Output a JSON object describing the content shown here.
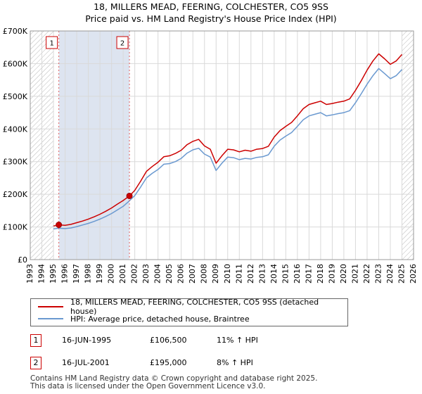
{
  "title_line1": "18, MILLERS MEAD, FEERING, COLCHESTER, CO5 9SS",
  "title_line2": "Price paid vs. HM Land Registry's House Price Index (HPI)",
  "legend": {
    "property": "18, MILLERS MEAD, FEERING, COLCHESTER, CO5 9SS (detached house)",
    "hpi": "HPI: Average price, detached house, Braintree"
  },
  "transactions": [
    {
      "id": "1",
      "date": "16-JUN-1995",
      "price": "£106,500",
      "hpi": "11% ↑ HPI"
    },
    {
      "id": "2",
      "date": "16-JUL-2001",
      "price": "£195,000",
      "hpi": "8% ↑ HPI"
    }
  ],
  "footer": {
    "line1": "Contains HM Land Registry data © Crown copyright and database right 2025.",
    "line2": "This data is licensed under the Open Government Licence v3.0."
  },
  "colors": {
    "property": "#cc0000",
    "hpi": "#6a99d0",
    "grid": "#d9d9d9",
    "shade": "#dde4f0"
  },
  "chart_data": {
    "type": "line",
    "title": "18, MILLERS MEAD, FEERING, COLCHESTER, CO5 9SS",
    "subtitle": "Price paid vs. HM Land Registry's House Price Index (HPI)",
    "xlabel": "",
    "ylabel": "",
    "xlim": [
      1993,
      2026
    ],
    "ylim": [
      0,
      700000
    ],
    "x_ticks": [
      1993,
      1994,
      1995,
      1996,
      1997,
      1998,
      1999,
      2000,
      2001,
      2002,
      2003,
      2004,
      2005,
      2006,
      2007,
      2008,
      2009,
      2010,
      2011,
      2012,
      2013,
      2014,
      2015,
      2016,
      2017,
      2018,
      2019,
      2020,
      2021,
      2022,
      2023,
      2024,
      2025,
      2026
    ],
    "y_ticks": [
      {
        "value": 0,
        "label": "£0"
      },
      {
        "value": 100000,
        "label": "£100K"
      },
      {
        "value": 200000,
        "label": "£200K"
      },
      {
        "value": 300000,
        "label": "£300K"
      },
      {
        "value": 400000,
        "label": "£400K"
      },
      {
        "value": 500000,
        "label": "£500K"
      },
      {
        "value": 600000,
        "label": "£600K"
      },
      {
        "value": 700000,
        "label": "£700K"
      }
    ],
    "hatched_ranges": [
      [
        1993,
        1995.0
      ],
      [
        2025.0,
        2026
      ]
    ],
    "shaded_range": [
      1995.46,
      2001.54
    ],
    "sale_points": [
      {
        "label": "1",
        "x": 1995.46,
        "y": 106500
      },
      {
        "label": "2",
        "x": 2001.54,
        "y": 195000
      }
    ],
    "series": [
      {
        "name": "18, MILLERS MEAD, FEERING, COLCHESTER, CO5 9SS (detached house)",
        "color": "#cc0000",
        "x": [
          1995.0,
          1995.46,
          1996.0,
          1996.5,
          1997.0,
          1997.5,
          1998.0,
          1998.5,
          1999.0,
          1999.5,
          2000.0,
          2000.5,
          2001.0,
          2001.54,
          2002.0,
          2002.5,
          2003.0,
          2003.5,
          2004.0,
          2004.5,
          2005.0,
          2005.5,
          2006.0,
          2006.5,
          2007.0,
          2007.5,
          2008.0,
          2008.5,
          2009.0,
          2009.5,
          2010.0,
          2010.5,
          2011.0,
          2011.5,
          2012.0,
          2012.5,
          2013.0,
          2013.5,
          2014.0,
          2014.5,
          2015.0,
          2015.5,
          2016.0,
          2016.5,
          2017.0,
          2017.5,
          2018.0,
          2018.5,
          2019.0,
          2019.5,
          2020.0,
          2020.5,
          2021.0,
          2021.5,
          2022.0,
          2022.5,
          2023.0,
          2023.5,
          2024.0,
          2024.5,
          2025.0
        ],
        "y": [
          103000,
          106500,
          105000,
          108000,
          113000,
          118000,
          124000,
          131000,
          139000,
          148000,
          158000,
          170000,
          181000,
          195000,
          212000,
          240000,
          270000,
          285000,
          298000,
          315000,
          318000,
          325000,
          335000,
          352000,
          362000,
          368000,
          348000,
          338000,
          295000,
          318000,
          338000,
          336000,
          330000,
          335000,
          332000,
          338000,
          340000,
          347000,
          375000,
          395000,
          408000,
          420000,
          440000,
          462000,
          475000,
          480000,
          485000,
          475000,
          478000,
          482000,
          485000,
          492000,
          518000,
          548000,
          580000,
          608000,
          630000,
          615000,
          598000,
          608000,
          628000
        ]
      },
      {
        "name": "HPI: Average price, detached house, Braintree",
        "color": "#6a99d0",
        "x": [
          1995.0,
          1995.46,
          1996.0,
          1996.5,
          1997.0,
          1997.5,
          1998.0,
          1998.5,
          1999.0,
          1999.5,
          2000.0,
          2000.5,
          2001.0,
          2001.54,
          2002.0,
          2002.5,
          2003.0,
          2003.5,
          2004.0,
          2004.5,
          2005.0,
          2005.5,
          2006.0,
          2006.5,
          2007.0,
          2007.5,
          2008.0,
          2008.5,
          2009.0,
          2009.5,
          2010.0,
          2010.5,
          2011.0,
          2011.5,
          2012.0,
          2012.5,
          2013.0,
          2013.5,
          2014.0,
          2014.5,
          2015.0,
          2015.5,
          2016.0,
          2016.5,
          2017.0,
          2017.5,
          2018.0,
          2018.5,
          2019.0,
          2019.5,
          2020.0,
          2020.5,
          2021.0,
          2021.5,
          2022.0,
          2022.5,
          2023.0,
          2023.5,
          2024.0,
          2024.5,
          2025.0
        ],
        "y": [
          94000,
          96000,
          95000,
          97000,
          101000,
          106000,
          111000,
          117000,
          124000,
          132000,
          141000,
          152000,
          163000,
          180000,
          196000,
          222000,
          250000,
          264000,
          276000,
          292000,
          294000,
          300000,
          310000,
          326000,
          336000,
          341000,
          323000,
          314000,
          273000,
          295000,
          314000,
          312000,
          306000,
          310000,
          308000,
          313000,
          315000,
          321000,
          347000,
          366000,
          378000,
          389000,
          408000,
          428000,
          440000,
          445000,
          450000,
          440000,
          443000,
          447000,
          450000,
          456000,
          480000,
          508000,
          537000,
          563000,
          585000,
          570000,
          554000,
          563000,
          582000
        ]
      }
    ]
  }
}
